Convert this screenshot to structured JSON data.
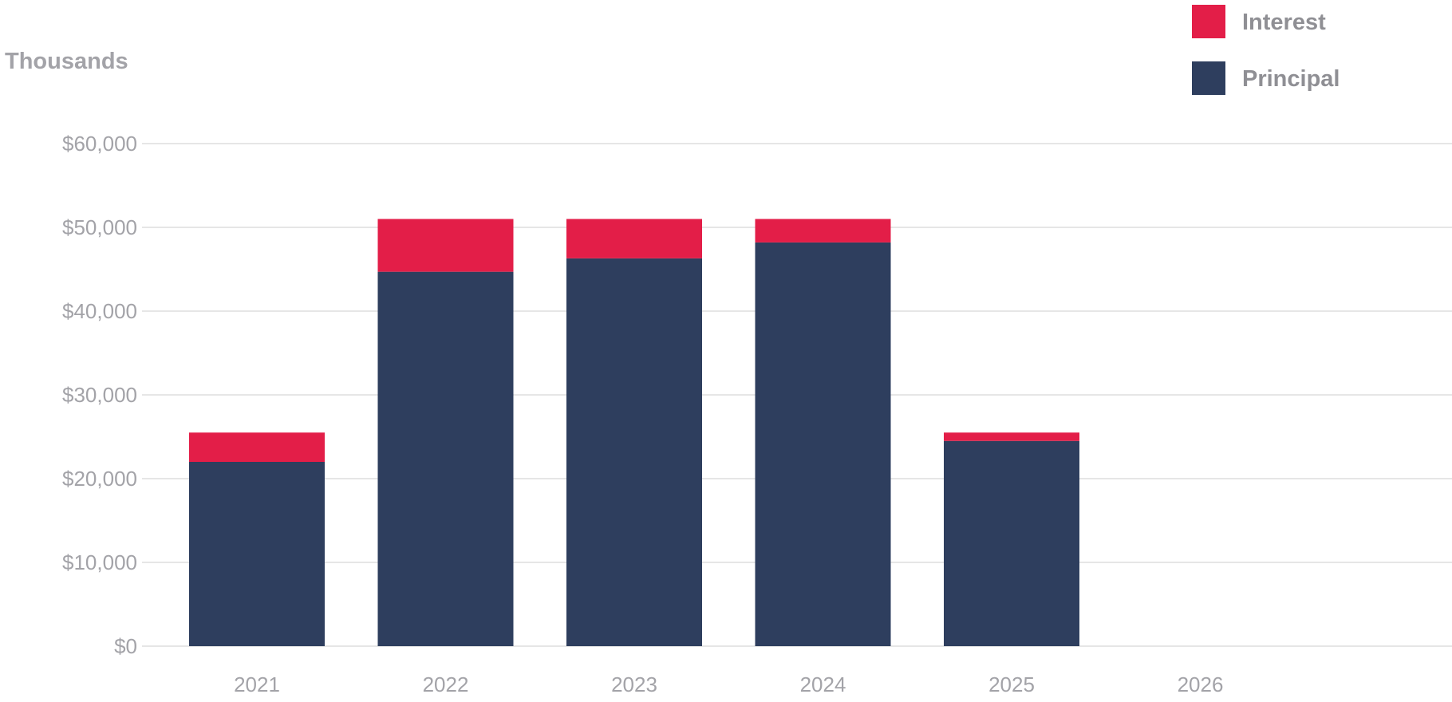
{
  "chart_data": {
    "type": "bar",
    "stacked": true,
    "ylabel": "Thousands",
    "categories": [
      "2021",
      "2022",
      "2023",
      "2024",
      "2025",
      "2026"
    ],
    "series": [
      {
        "name": "Principal",
        "values": [
          22000,
          44700,
          46300,
          48200,
          24500,
          0
        ],
        "color": "#2e3e5e"
      },
      {
        "name": "Interest",
        "values": [
          3500,
          6300,
          4700,
          2800,
          1000,
          0
        ],
        "color": "#e31e48"
      }
    ],
    "ylim": [
      0,
      60000
    ],
    "yticks": [
      0,
      10000,
      20000,
      30000,
      40000,
      50000,
      60000
    ],
    "ytick_labels": [
      "$0",
      "$10,000",
      "$20,000",
      "$30,000",
      "$40,000",
      "$50,000",
      "$60,000"
    ],
    "grid": true,
    "legend": {
      "placement": "top-right",
      "items": [
        {
          "name": "Interest",
          "color": "#e31e48"
        },
        {
          "name": "Principal",
          "color": "#2e3e5e"
        }
      ]
    }
  },
  "colors": {
    "grid": "#e6e6e6",
    "axis_text": "#a3a3a8",
    "legend_text": "#8f8f94"
  }
}
